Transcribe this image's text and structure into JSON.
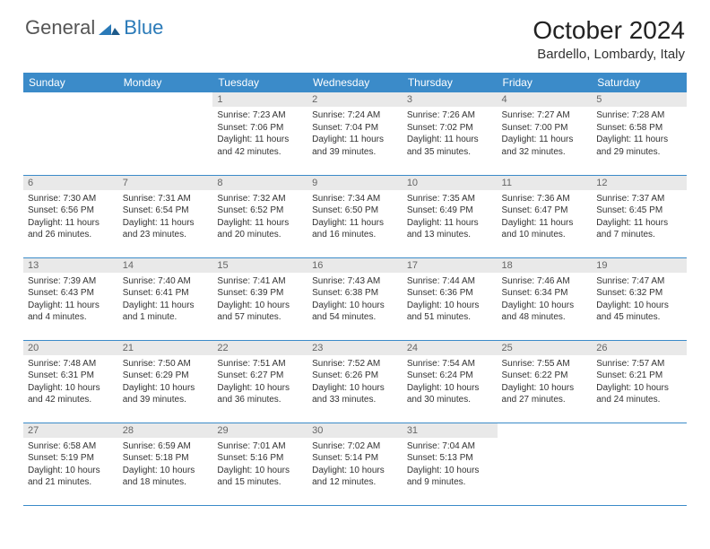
{
  "logo": {
    "text1": "General",
    "text2": "Blue"
  },
  "title": "October 2024",
  "location": "Bardello, Lombardy, Italy",
  "colors": {
    "header_bg": "#3b8bc9",
    "daynum_bg": "#e9e9e9",
    "border": "#3b8bc9",
    "logo_blue": "#2a7ab8"
  },
  "weekdays": [
    "Sunday",
    "Monday",
    "Tuesday",
    "Wednesday",
    "Thursday",
    "Friday",
    "Saturday"
  ],
  "weeks": [
    [
      {
        "n": "",
        "sr": "",
        "ss": "",
        "dl": ""
      },
      {
        "n": "",
        "sr": "",
        "ss": "",
        "dl": ""
      },
      {
        "n": "1",
        "sr": "Sunrise: 7:23 AM",
        "ss": "Sunset: 7:06 PM",
        "dl": "Daylight: 11 hours and 42 minutes."
      },
      {
        "n": "2",
        "sr": "Sunrise: 7:24 AM",
        "ss": "Sunset: 7:04 PM",
        "dl": "Daylight: 11 hours and 39 minutes."
      },
      {
        "n": "3",
        "sr": "Sunrise: 7:26 AM",
        "ss": "Sunset: 7:02 PM",
        "dl": "Daylight: 11 hours and 35 minutes."
      },
      {
        "n": "4",
        "sr": "Sunrise: 7:27 AM",
        "ss": "Sunset: 7:00 PM",
        "dl": "Daylight: 11 hours and 32 minutes."
      },
      {
        "n": "5",
        "sr": "Sunrise: 7:28 AM",
        "ss": "Sunset: 6:58 PM",
        "dl": "Daylight: 11 hours and 29 minutes."
      }
    ],
    [
      {
        "n": "6",
        "sr": "Sunrise: 7:30 AM",
        "ss": "Sunset: 6:56 PM",
        "dl": "Daylight: 11 hours and 26 minutes."
      },
      {
        "n": "7",
        "sr": "Sunrise: 7:31 AM",
        "ss": "Sunset: 6:54 PM",
        "dl": "Daylight: 11 hours and 23 minutes."
      },
      {
        "n": "8",
        "sr": "Sunrise: 7:32 AM",
        "ss": "Sunset: 6:52 PM",
        "dl": "Daylight: 11 hours and 20 minutes."
      },
      {
        "n": "9",
        "sr": "Sunrise: 7:34 AM",
        "ss": "Sunset: 6:50 PM",
        "dl": "Daylight: 11 hours and 16 minutes."
      },
      {
        "n": "10",
        "sr": "Sunrise: 7:35 AM",
        "ss": "Sunset: 6:49 PM",
        "dl": "Daylight: 11 hours and 13 minutes."
      },
      {
        "n": "11",
        "sr": "Sunrise: 7:36 AM",
        "ss": "Sunset: 6:47 PM",
        "dl": "Daylight: 11 hours and 10 minutes."
      },
      {
        "n": "12",
        "sr": "Sunrise: 7:37 AM",
        "ss": "Sunset: 6:45 PM",
        "dl": "Daylight: 11 hours and 7 minutes."
      }
    ],
    [
      {
        "n": "13",
        "sr": "Sunrise: 7:39 AM",
        "ss": "Sunset: 6:43 PM",
        "dl": "Daylight: 11 hours and 4 minutes."
      },
      {
        "n": "14",
        "sr": "Sunrise: 7:40 AM",
        "ss": "Sunset: 6:41 PM",
        "dl": "Daylight: 11 hours and 1 minute."
      },
      {
        "n": "15",
        "sr": "Sunrise: 7:41 AM",
        "ss": "Sunset: 6:39 PM",
        "dl": "Daylight: 10 hours and 57 minutes."
      },
      {
        "n": "16",
        "sr": "Sunrise: 7:43 AM",
        "ss": "Sunset: 6:38 PM",
        "dl": "Daylight: 10 hours and 54 minutes."
      },
      {
        "n": "17",
        "sr": "Sunrise: 7:44 AM",
        "ss": "Sunset: 6:36 PM",
        "dl": "Daylight: 10 hours and 51 minutes."
      },
      {
        "n": "18",
        "sr": "Sunrise: 7:46 AM",
        "ss": "Sunset: 6:34 PM",
        "dl": "Daylight: 10 hours and 48 minutes."
      },
      {
        "n": "19",
        "sr": "Sunrise: 7:47 AM",
        "ss": "Sunset: 6:32 PM",
        "dl": "Daylight: 10 hours and 45 minutes."
      }
    ],
    [
      {
        "n": "20",
        "sr": "Sunrise: 7:48 AM",
        "ss": "Sunset: 6:31 PM",
        "dl": "Daylight: 10 hours and 42 minutes."
      },
      {
        "n": "21",
        "sr": "Sunrise: 7:50 AM",
        "ss": "Sunset: 6:29 PM",
        "dl": "Daylight: 10 hours and 39 minutes."
      },
      {
        "n": "22",
        "sr": "Sunrise: 7:51 AM",
        "ss": "Sunset: 6:27 PM",
        "dl": "Daylight: 10 hours and 36 minutes."
      },
      {
        "n": "23",
        "sr": "Sunrise: 7:52 AM",
        "ss": "Sunset: 6:26 PM",
        "dl": "Daylight: 10 hours and 33 minutes."
      },
      {
        "n": "24",
        "sr": "Sunrise: 7:54 AM",
        "ss": "Sunset: 6:24 PM",
        "dl": "Daylight: 10 hours and 30 minutes."
      },
      {
        "n": "25",
        "sr": "Sunrise: 7:55 AM",
        "ss": "Sunset: 6:22 PM",
        "dl": "Daylight: 10 hours and 27 minutes."
      },
      {
        "n": "26",
        "sr": "Sunrise: 7:57 AM",
        "ss": "Sunset: 6:21 PM",
        "dl": "Daylight: 10 hours and 24 minutes."
      }
    ],
    [
      {
        "n": "27",
        "sr": "Sunrise: 6:58 AM",
        "ss": "Sunset: 5:19 PM",
        "dl": "Daylight: 10 hours and 21 minutes."
      },
      {
        "n": "28",
        "sr": "Sunrise: 6:59 AM",
        "ss": "Sunset: 5:18 PM",
        "dl": "Daylight: 10 hours and 18 minutes."
      },
      {
        "n": "29",
        "sr": "Sunrise: 7:01 AM",
        "ss": "Sunset: 5:16 PM",
        "dl": "Daylight: 10 hours and 15 minutes."
      },
      {
        "n": "30",
        "sr": "Sunrise: 7:02 AM",
        "ss": "Sunset: 5:14 PM",
        "dl": "Daylight: 10 hours and 12 minutes."
      },
      {
        "n": "31",
        "sr": "Sunrise: 7:04 AM",
        "ss": "Sunset: 5:13 PM",
        "dl": "Daylight: 10 hours and 9 minutes."
      },
      {
        "n": "",
        "sr": "",
        "ss": "",
        "dl": ""
      },
      {
        "n": "",
        "sr": "",
        "ss": "",
        "dl": ""
      }
    ]
  ]
}
